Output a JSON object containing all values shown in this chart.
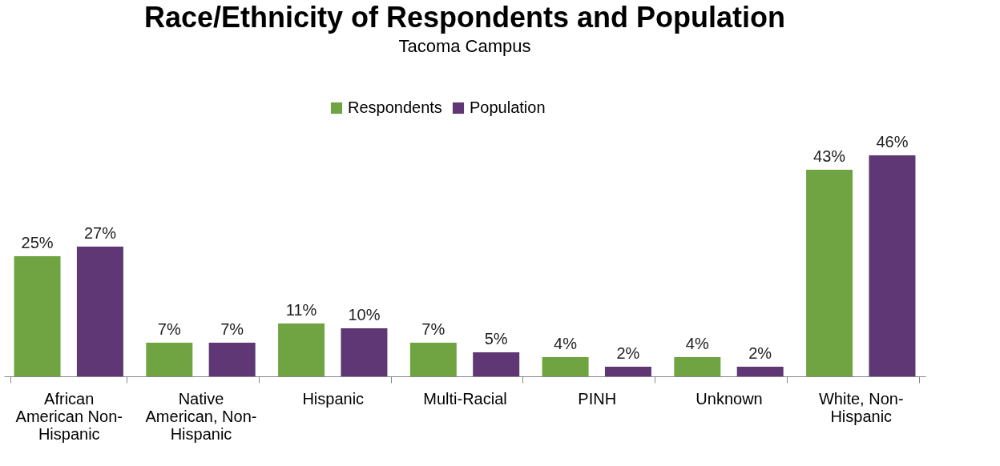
{
  "chart_data": {
    "type": "bar",
    "title": "Race/Ethnicity of Respondents and Population",
    "subtitle": "Tacoma Campus",
    "categories": [
      "African American Non-Hispanic",
      "Native American, Non-Hispanic",
      "Hispanic",
      "Multi-Racial",
      "PINH",
      "Unknown",
      "White, Non-Hispanic"
    ],
    "series": [
      {
        "name": "Respondents",
        "color": "#70a442",
        "values": [
          25,
          7,
          11,
          7,
          4,
          4,
          43
        ],
        "value_labels": [
          "25%",
          "7%",
          "11%",
          "7%",
          "4%",
          "4%",
          "43%"
        ]
      },
      {
        "name": "Population",
        "color": "#5f3775",
        "values": [
          27,
          7,
          10,
          5,
          2,
          2,
          46
        ],
        "value_labels": [
          "27%",
          "7%",
          "10%",
          "5%",
          "2%",
          "2%",
          "46%"
        ]
      }
    ],
    "legend": "top",
    "grid": false
  }
}
